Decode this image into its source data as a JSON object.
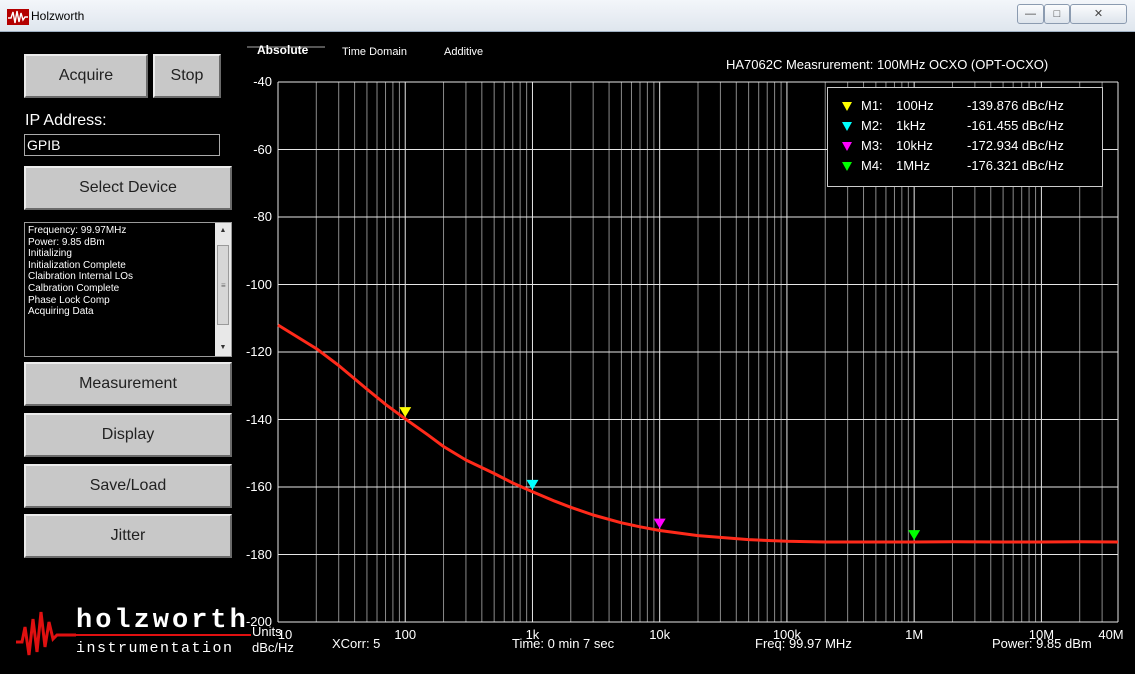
{
  "window": {
    "title": "Holzworth",
    "minimize_glyph": "—",
    "maximize_glyph": "□",
    "close_glyph": "✕"
  },
  "sidebar": {
    "acquire_label": "Acquire",
    "stop_label": "Stop",
    "ip_label": "IP Address:",
    "ip_value": "GPIB",
    "select_device_label": "Select Device",
    "log_lines": [
      "Frequency: 99.97MHz",
      "Power:  9.85 dBm",
      "Initializing",
      "Initialization Complete",
      "Claibration Internal LOs",
      "Calbration Complete",
      "Phase Lock Comp",
      "Acquiring Data"
    ],
    "measurement_label": "Measurement",
    "display_label": "Display",
    "saveload_label": "Save/Load",
    "jitter_label": "Jitter"
  },
  "brand": {
    "word1": "holzworth",
    "word2": "instrumentation"
  },
  "tabs": [
    "Absolute",
    "Time Domain",
    "Additive"
  ],
  "units": {
    "label": "Units",
    "value": "dBc/Hz"
  },
  "chart_title": "HA7062C Measrurement: 100MHz OCXO  (OPT-OCXO)",
  "status": {
    "xcorr": "XCorr:  5",
    "time": "Time:  0 min  7 sec",
    "freq": "Freq:  99.97 MHz",
    "power": "Power:  9.85 dBm"
  },
  "markers": [
    {
      "name": "M1:",
      "freq_label": "100Hz",
      "value_label": "-139.876 dBc/Hz",
      "freq": 100,
      "value": -139.876,
      "color": "#ffff00"
    },
    {
      "name": "M2:",
      "freq_label": "1kHz",
      "value_label": "-161.455 dBc/Hz",
      "freq": 1000,
      "value": -161.455,
      "color": "#00ffff"
    },
    {
      "name": "M3:",
      "freq_label": "10kHz",
      "value_label": "-172.934 dBc/Hz",
      "freq": 10000,
      "value": -172.934,
      "color": "#ff00ff"
    },
    {
      "name": "M4:",
      "freq_label": "1MHz",
      "value_label": "-176.321 dBc/Hz",
      "freq": 1000000,
      "value": -176.321,
      "color": "#00ff00"
    }
  ],
  "chart_data": {
    "type": "line",
    "x_scale": "log",
    "xlim": [
      10,
      40000000
    ],
    "ylim": [
      -200,
      -40
    ],
    "xticks": [
      10,
      100,
      1000,
      10000,
      100000,
      1000000,
      10000000,
      40000000
    ],
    "xtick_labels": [
      "10",
      "100",
      "1k",
      "10k",
      "100k",
      "1M",
      "10M",
      "40M"
    ],
    "yticks": [
      -40,
      -60,
      -80,
      -100,
      -120,
      -140,
      -160,
      -180,
      -200
    ],
    "ytick_labels": [
      "-40",
      "-60",
      "-80",
      "-100",
      "-120",
      "-140",
      "-160",
      "-180",
      "-200"
    ],
    "grid": true,
    "legend": "top-right",
    "series": [
      {
        "color": "#ff2a1a",
        "x": [
          10,
          20,
          30,
          50,
          70,
          100,
          150,
          200,
          300,
          500,
          700,
          1000,
          1500,
          2000,
          3000,
          5000,
          7000,
          10000,
          20000,
          50000,
          100000,
          200000,
          500000,
          1000000,
          2000000,
          5000000,
          10000000,
          20000000,
          40000000
        ],
        "y": [
          -112,
          -119,
          -124,
          -131,
          -135.5,
          -139.8,
          -144.5,
          -148,
          -152,
          -156,
          -158.8,
          -161.4,
          -164.2,
          -166,
          -168.3,
          -170.6,
          -171.8,
          -172.9,
          -174.4,
          -175.6,
          -176.1,
          -176.3,
          -176.3,
          -176.3,
          -176.2,
          -176.3,
          -176.3,
          -176.2,
          -176.3
        ]
      }
    ]
  }
}
